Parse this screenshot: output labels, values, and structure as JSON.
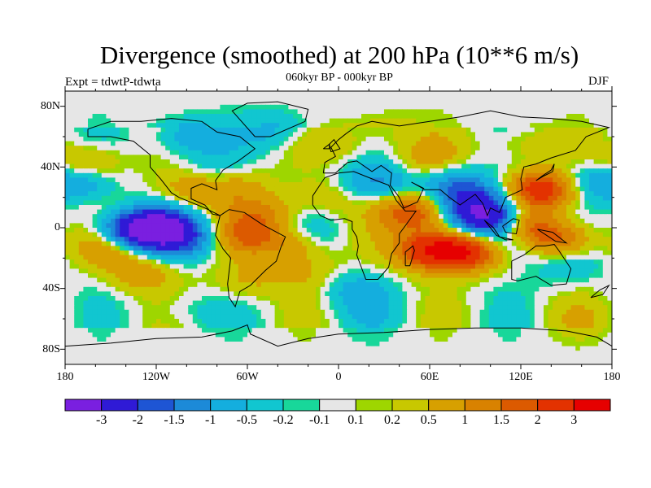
{
  "header": {
    "title": "Divergence (smoothed) at 200 hPa (10**6 m/s)",
    "subtitle": "060kyr BP - 000kyr BP",
    "left_string": "Expt = tdwtP-tdwta",
    "right_string": "DJF"
  },
  "axes": {
    "lat_labels": [
      "80N",
      "40N",
      "0",
      "40S",
      "80S"
    ],
    "lon_labels": [
      "180",
      "120W",
      "60W",
      "0",
      "60E",
      "120E",
      "180"
    ]
  },
  "legend": {
    "labels": [
      "-3",
      "-2",
      "-1.5",
      "-1",
      "-0.5",
      "-0.2",
      "-0.1",
      "0.1",
      "0.2",
      "0.5",
      "1",
      "1.5",
      "2",
      "3"
    ],
    "colors": [
      "#7a1fe0",
      "#2f1ad6",
      "#1e55d4",
      "#1c8ad8",
      "#14aede",
      "#11c6d0",
      "#18d79a",
      "#e6e6e6",
      "#9ed600",
      "#c8c800",
      "#d7a000",
      "#d98200",
      "#dc5a00",
      "#e33200",
      "#e60000"
    ]
  },
  "chart_data": {
    "type": "heatmap",
    "title": "Divergence (smoothed) at 200 hPa (10**6 m/s)",
    "subtitle": "060kyr BP - 000kyr BP",
    "season": "DJF",
    "experiment": "tdwtP-tdwta",
    "x_range": [
      -180,
      180
    ],
    "y_range": [
      -90,
      90
    ],
    "contour_levels": [
      -3,
      -2,
      -1.5,
      -1,
      -0.5,
      -0.2,
      -0.1,
      0.1,
      0.2,
      0.5,
      1,
      1.5,
      2,
      3
    ],
    "features": [
      {
        "lon": -118,
        "lat": 0,
        "value": -3.2
      },
      {
        "lon": -138,
        "lat": -3,
        "value": -2.2
      },
      {
        "lon": -100,
        "lat": -8,
        "value": -1.2
      },
      {
        "lon": 100,
        "lat": 5,
        "value": -3.2
      },
      {
        "lon": 88,
        "lat": 18,
        "value": -1.8
      },
      {
        "lon": 112,
        "lat": -10,
        "value": -1.4
      },
      {
        "lon": 75,
        "lat": 30,
        "value": -0.9
      },
      {
        "lon": 25,
        "lat": 30,
        "value": -1.1
      },
      {
        "lon": -100,
        "lat": 60,
        "value": -0.9
      },
      {
        "lon": -40,
        "lat": 65,
        "value": -0.6
      },
      {
        "lon": 160,
        "lat": 30,
        "value": -0.8
      },
      {
        "lon": -170,
        "lat": 30,
        "value": -1.0
      },
      {
        "lon": -80,
        "lat": 35,
        "value": -0.8
      },
      {
        "lon": -20,
        "lat": -5,
        "value": -0.7
      },
      {
        "lon": 10,
        "lat": -40,
        "value": -0.6
      },
      {
        "lon": 150,
        "lat": -25,
        "value": -0.5
      },
      {
        "lon": -60,
        "lat": -5,
        "value": 1.4
      },
      {
        "lon": -50,
        "lat": 10,
        "value": 0.9
      },
      {
        "lon": -28,
        "lat": -10,
        "value": 1.2
      },
      {
        "lon": 50,
        "lat": 10,
        "value": 2.0
      },
      {
        "lon": 60,
        "lat": -15,
        "value": 2.6
      },
      {
        "lon": 85,
        "lat": -15,
        "value": 2.8
      },
      {
        "lon": 120,
        "lat": 0,
        "value": 2.0
      },
      {
        "lon": 135,
        "lat": 25,
        "value": 2.7
      },
      {
        "lon": 145,
        "lat": -8,
        "value": 1.6
      },
      {
        "lon": -95,
        "lat": 25,
        "value": 1.0
      },
      {
        "lon": -70,
        "lat": 30,
        "value": 0.9
      },
      {
        "lon": -150,
        "lat": -12,
        "value": 1.2
      },
      {
        "lon": -130,
        "lat": -30,
        "value": 0.8
      },
      {
        "lon": -165,
        "lat": 42,
        "value": 1.0
      },
      {
        "lon": -60,
        "lat": -35,
        "value": 0.6
      },
      {
        "lon": 0,
        "lat": 55,
        "value": 0.4
      },
      {
        "lon": 30,
        "lat": 65,
        "value": 0.4
      },
      {
        "lon": 60,
        "lat": 45,
        "value": 0.7
      },
      {
        "lon": 120,
        "lat": 55,
        "value": 0.5
      },
      {
        "lon": -10,
        "lat": 20,
        "value": 0.5
      },
      {
        "lon": 20,
        "lat": -55,
        "value": -0.3
      },
      {
        "lon": -100,
        "lat": -55,
        "value": -0.3
      },
      {
        "lon": 160,
        "lat": -60,
        "value": 0.3
      },
      {
        "lon": -20,
        "lat": -30,
        "value": 0.5
      }
    ]
  }
}
